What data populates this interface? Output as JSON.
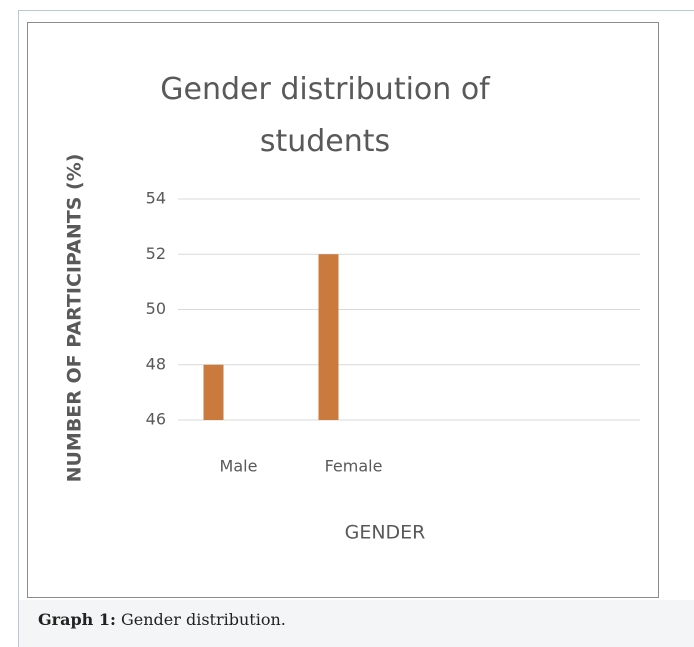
{
  "chart_data": {
    "type": "bar",
    "title": "Gender distribution of students",
    "x_label": "GENDER",
    "y_label": "NUMBER OF PARTICIPANTS (%)",
    "categories": [
      "Male",
      "Female"
    ],
    "values": [
      48,
      52
    ],
    "color": "#c97a3c",
    "ylim": [
      46,
      54
    ],
    "yticks": [
      46,
      48,
      50,
      52,
      54
    ],
    "grid": true
  },
  "caption": {
    "label": "Graph 1:",
    "text": "Gender distribution."
  }
}
